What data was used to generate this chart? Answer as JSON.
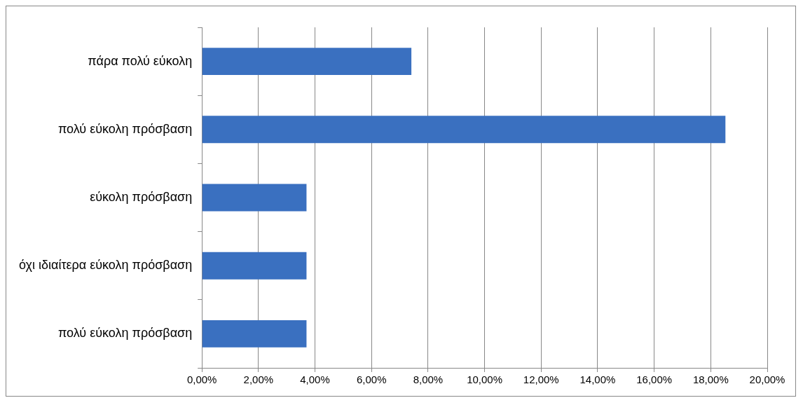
{
  "chart_data": {
    "type": "bar",
    "orientation": "horizontal",
    "categories": [
      "πάρα πολύ εύκολη",
      "πολύ εύκολη πρόσβαση",
      "εύκολη πρόσβαση",
      "όχι ιδιαίτερα εύκολη πρόσβαση",
      "πολύ εύκολη πρόσβαση"
    ],
    "values": [
      7.41,
      18.52,
      3.7,
      3.7,
      3.7
    ],
    "color": "#3a70c0",
    "xlim": [
      0,
      20
    ],
    "xticks": [
      {
        "value": 0,
        "label": "0,00%"
      },
      {
        "value": 2,
        "label": "2,00%"
      },
      {
        "value": 4,
        "label": "4,00%"
      },
      {
        "value": 6,
        "label": "6,00%"
      },
      {
        "value": 8,
        "label": "8,00%"
      },
      {
        "value": 10,
        "label": "10,00%"
      },
      {
        "value": 12,
        "label": "12,00%"
      },
      {
        "value": 14,
        "label": "14,00%"
      },
      {
        "value": 16,
        "label": "16,00%"
      },
      {
        "value": 18,
        "label": "18,00%"
      },
      {
        "value": 20,
        "label": "20,00%"
      }
    ],
    "grid": "x",
    "legend": false
  }
}
